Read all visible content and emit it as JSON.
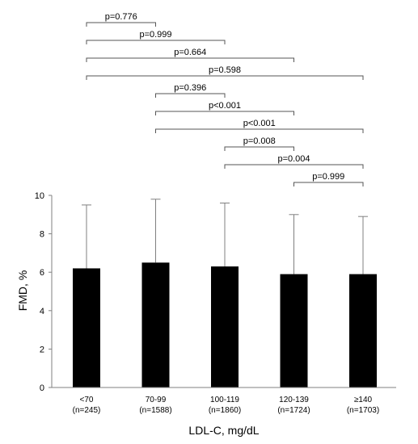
{
  "chart_data": {
    "type": "bar",
    "xlabel": "LDL-C, mg/dL",
    "ylabel": "FMD, %",
    "ylim": [
      0,
      10
    ],
    "yticks": [
      0,
      2,
      4,
      6,
      8,
      10
    ],
    "grid": false,
    "categories": [
      {
        "label": "<70",
        "n": "(n=245)"
      },
      {
        "label": "70-99",
        "n": "(n=1588)"
      },
      {
        "label": "100-119",
        "n": "(n=1860)"
      },
      {
        "label": "120-139",
        "n": "(n=1724)"
      },
      {
        "label": "≥140",
        "n": "(n=1703)"
      }
    ],
    "values": [
      6.2,
      6.5,
      6.3,
      5.9,
      5.9
    ],
    "error_upper": [
      9.5,
      9.8,
      9.6,
      9.0,
      8.9
    ],
    "bar_color": "#000000",
    "comparisons": [
      {
        "from": 0,
        "to": 1,
        "label": "p=0.776"
      },
      {
        "from": 0,
        "to": 2,
        "label": "p=0.999"
      },
      {
        "from": 0,
        "to": 3,
        "label": "p=0.664"
      },
      {
        "from": 0,
        "to": 4,
        "label": "p=0.598"
      },
      {
        "from": 1,
        "to": 2,
        "label": "p=0.396"
      },
      {
        "from": 1,
        "to": 3,
        "label": "p<0.001"
      },
      {
        "from": 1,
        "to": 4,
        "label": "p<0.001"
      },
      {
        "from": 2,
        "to": 3,
        "label": "p=0.008"
      },
      {
        "from": 2,
        "to": 4,
        "label": "p=0.004"
      },
      {
        "from": 3,
        "to": 4,
        "label": "p=0.999"
      }
    ]
  }
}
